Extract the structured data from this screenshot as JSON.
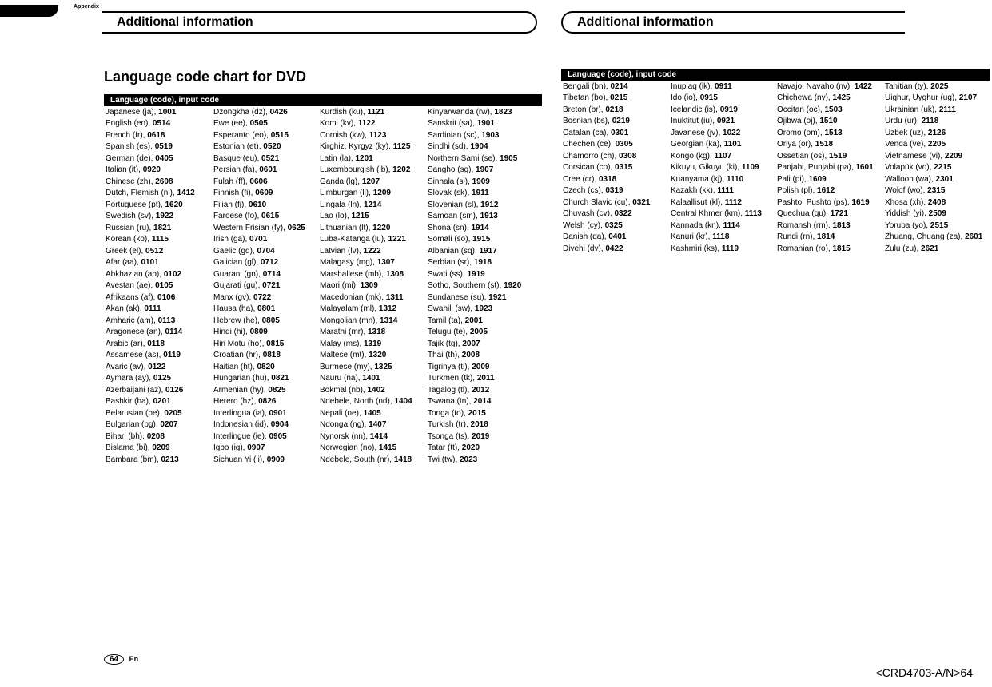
{
  "appendix_label": "Appendix",
  "section_title": "Additional information",
  "page_title": "Language code chart for DVD",
  "table_header": "Language (code), input code",
  "page_num": "64",
  "page_lang": "En",
  "footer": "<CRD4703-A/N>64",
  "left_table": [
    [
      "Japanese (ja)",
      "1001",
      "Dzongkha (dz)",
      "0426",
      "Kurdish (ku)",
      "1121",
      "Kinyarwanda (rw)",
      "1823"
    ],
    [
      "English (en)",
      "0514",
      "Ewe (ee)",
      "0505",
      "Komi (kv)",
      "1122",
      "Sanskrit (sa)",
      "1901"
    ],
    [
      "French (fr)",
      "0618",
      "Esperanto (eo)",
      "0515",
      "Cornish (kw)",
      "1123",
      "Sardinian (sc)",
      "1903"
    ],
    [
      "Spanish (es)",
      "0519",
      "Estonian (et)",
      "0520",
      "Kirghiz, Kyrgyz (ky)",
      "1125",
      "Sindhi (sd)",
      "1904"
    ],
    [
      "German (de)",
      "0405",
      "Basque (eu)",
      "0521",
      "Latin (la)",
      "1201",
      "Northern Sami (se)",
      "1905"
    ],
    [
      "Italian (it)",
      "0920",
      "Persian (fa)",
      "0601",
      "Luxembourgish (lb)",
      "1202",
      "Sangho (sg)",
      "1907"
    ],
    [
      "Chinese (zh)",
      "2608",
      "Fulah (ff)",
      "0606",
      "Ganda (lg)",
      "1207",
      "Sinhala (si)",
      "1909"
    ],
    [
      "Dutch, Flemish (nl)",
      "1412",
      "Finnish (fi)",
      "0609",
      "Limburgan (li)",
      "1209",
      "Slovak (sk)",
      "1911"
    ],
    [
      "Portuguese (pt)",
      "1620",
      "Fijian (fj)",
      "0610",
      "Lingala (ln)",
      "1214",
      "Slovenian (sl)",
      "1912"
    ],
    [
      "Swedish (sv)",
      "1922",
      "Faroese (fo)",
      "0615",
      "Lao (lo)",
      "1215",
      "Samoan (sm)",
      "1913"
    ],
    [
      "Russian (ru)",
      "1821",
      "Western Frisian (fy)",
      "0625",
      "Lithuanian (lt)",
      "1220",
      "Shona (sn)",
      "1914"
    ],
    [
      "Korean (ko)",
      "1115",
      "Irish (ga)",
      "0701",
      "Luba-Katanga (lu)",
      "1221",
      "Somali (so)",
      "1915"
    ],
    [
      "Greek (el)",
      "0512",
      "Gaelic (gd)",
      "0704",
      "Latvian (lv)",
      "1222",
      "Albanian (sq)",
      "1917"
    ],
    [
      "Afar (aa)",
      "0101",
      "Galician (gl)",
      "0712",
      "Malagasy (mg)",
      "1307",
      "Serbian (sr)",
      "1918"
    ],
    [
      "Abkhazian (ab)",
      "0102",
      "Guarani (gn)",
      "0714",
      "Marshallese (mh)",
      "1308",
      "Swati (ss)",
      "1919"
    ],
    [
      "Avestan (ae)",
      "0105",
      "Gujarati (gu)",
      "0721",
      "Maori (mi)",
      "1309",
      "Sotho, Southern (st)",
      "1920"
    ],
    [
      "Afrikaans (af)",
      "0106",
      "Manx (gv)",
      "0722",
      "Macedonian (mk)",
      "1311",
      "Sundanese (su)",
      "1921"
    ],
    [
      "Akan (ak)",
      "0111",
      "Hausa (ha)",
      "0801",
      "Malayalam (ml)",
      "1312",
      "Swahili (sw)",
      "1923"
    ],
    [
      "Amharic (am)",
      "0113",
      "Hebrew (he)",
      "0805",
      "Mongolian (mn)",
      "1314",
      "Tamil (ta)",
      "2001"
    ],
    [
      "Aragonese (an)",
      "0114",
      "Hindi (hi)",
      "0809",
      "Marathi (mr)",
      "1318",
      "Telugu (te)",
      "2005"
    ],
    [
      "Arabic (ar)",
      "0118",
      "Hiri Motu (ho)",
      "0815",
      "Malay (ms)",
      "1319",
      "Tajik (tg)",
      "2007"
    ],
    [
      "Assamese (as)",
      "0119",
      "Croatian (hr)",
      "0818",
      "Maltese (mt)",
      "1320",
      "Thai (th)",
      "2008"
    ],
    [
      "Avaric (av)",
      "0122",
      "Haitian (ht)",
      "0820",
      "Burmese (my)",
      "1325",
      "Tigrinya (ti)",
      "2009"
    ],
    [
      "Aymara (ay)",
      "0125",
      "Hungarian (hu)",
      "0821",
      "Nauru (na)",
      "1401",
      "Turkmen (tk)",
      "2011"
    ],
    [
      "Azerbaijani (az)",
      "0126",
      "Armenian (hy)",
      "0825",
      "Bokmal (nb)",
      "1402",
      "Tagalog (tl)",
      "2012"
    ],
    [
      "Bashkir (ba)",
      "0201",
      "Herero (hz)",
      "0826",
      "Ndebele, North (nd)",
      "1404",
      "Tswana (tn)",
      "2014"
    ],
    [
      "Belarusian (be)",
      "0205",
      "Interlingua (ia)",
      "0901",
      "Nepali (ne)",
      "1405",
      "Tonga (to)",
      "2015"
    ],
    [
      "Bulgarian (bg)",
      "0207",
      "Indonesian (id)",
      "0904",
      "Ndonga (ng)",
      "1407",
      "Turkish (tr)",
      "2018"
    ],
    [
      "Bihari (bh)",
      "0208",
      "Interlingue (ie)",
      "0905",
      "Nynorsk (nn)",
      "1414",
      "Tsonga (ts)",
      "2019"
    ],
    [
      "Bislama (bi)",
      "0209",
      "Igbo (ig)",
      "0907",
      "Norwegian (no)",
      "1415",
      "Tatar (tt)",
      "2020"
    ],
    [
      "Bambara (bm)",
      "0213",
      "Sichuan Yi (ii)",
      "0909",
      "Ndebele, South (nr)",
      "1418",
      "Twi (tw)",
      "2023"
    ]
  ],
  "right_table": [
    [
      "Bengali (bn)",
      "0214",
      "Inupiaq (ik)",
      "0911",
      "Navajo, Navaho (nv)",
      "1422",
      "Tahitian (ty)",
      "2025"
    ],
    [
      "Tibetan (bo)",
      "0215",
      "Ido (io)",
      "0915",
      "Chichewa (ny)",
      "1425",
      "Uighur, Uyghur (ug)",
      "2107"
    ],
    [
      "Breton (br)",
      "0218",
      "Icelandic (is)",
      "0919",
      "Occitan (oc)",
      "1503",
      "Ukrainian (uk)",
      "2111"
    ],
    [
      "Bosnian (bs)",
      "0219",
      "Inuktitut (iu)",
      "0921",
      "Ojibwa (oj)",
      "1510",
      "Urdu (ur)",
      "2118"
    ],
    [
      "Catalan (ca)",
      "0301",
      "Javanese (jv)",
      "1022",
      "Oromo (om)",
      "1513",
      "Uzbek (uz)",
      "2126"
    ],
    [
      "Chechen (ce)",
      "0305",
      "Georgian (ka)",
      "1101",
      "Oriya (or)",
      "1518",
      "Venda (ve)",
      "2205"
    ],
    [
      "Chamorro (ch)",
      "0308",
      "Kongo (kg)",
      "1107",
      "Ossetian (os)",
      "1519",
      "Vietnamese (vi)",
      "2209"
    ],
    [
      "Corsican (co)",
      "0315",
      "Kikuyu, Gikuyu (ki)",
      "1109",
      "Panjabi, Punjabi (pa)",
      "1601",
      "Volapük (vo)",
      "2215"
    ],
    [
      "Cree (cr)",
      "0318",
      "Kuanyama (kj)",
      "1110",
      "Pali (pi)",
      "1609",
      "Walloon (wa)",
      "2301"
    ],
    [
      "Czech (cs)",
      "0319",
      "Kazakh (kk)",
      "1111",
      "Polish (pl)",
      "1612",
      "Wolof (wo)",
      "2315"
    ],
    [
      "Church Slavic (cu)",
      "0321",
      "Kalaallisut (kl)",
      "1112",
      "Pashto, Pushto (ps)",
      "1619",
      "Xhosa (xh)",
      "2408"
    ],
    [
      "Chuvash (cv)",
      "0322",
      "Central Khmer (km)",
      "1113",
      "Quechua (qu)",
      "1721",
      "Yiddish (yi)",
      "2509"
    ],
    [
      "Welsh (cy)",
      "0325",
      "Kannada (kn)",
      "1114",
      "Romansh (rm)",
      "1813",
      "Yoruba (yo)",
      "2515"
    ],
    [
      "Danish (da)",
      "0401",
      "Kanuri (kr)",
      "1118",
      "Rundi (rn)",
      "1814",
      "Zhuang, Chuang (za)",
      "2601"
    ],
    [
      "Divehi (dv)",
      "0422",
      "Kashmiri (ks)",
      "1119",
      "Romanian (ro)",
      "1815",
      "Zulu (zu)",
      "2621"
    ]
  ]
}
